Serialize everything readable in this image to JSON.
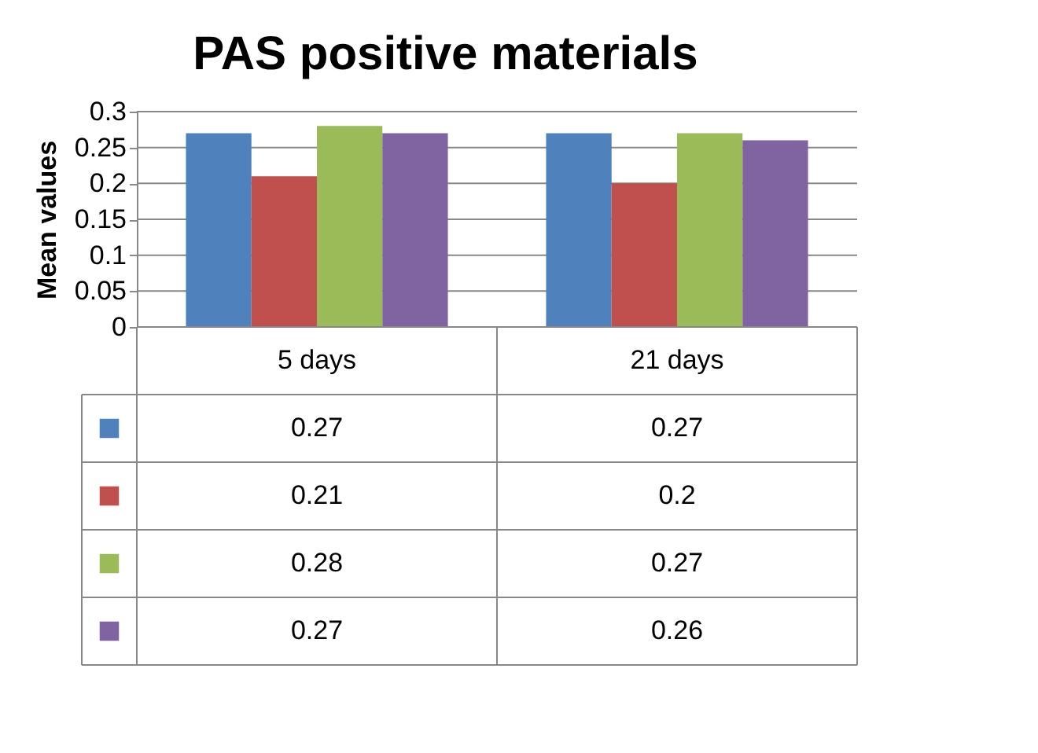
{
  "chart_data": {
    "type": "bar",
    "title": "PAS positive materials",
    "ylabel": "Mean values",
    "categories": [
      "5 days",
      "21 days"
    ],
    "series": [
      {
        "color": "#4f81bd",
        "values": [
          0.27,
          0.27
        ]
      },
      {
        "color": "#c0504d",
        "values": [
          0.21,
          0.2
        ]
      },
      {
        "color": "#9bbb59",
        "values": [
          0.28,
          0.27
        ]
      },
      {
        "color": "#8064a2",
        "values": [
          0.27,
          0.26
        ]
      }
    ],
    "ylim": [
      0,
      0.3
    ],
    "yticks": [
      0,
      0.05,
      0.1,
      0.15,
      0.2,
      0.25,
      0.3
    ],
    "grid": "y",
    "data_labels": true
  }
}
